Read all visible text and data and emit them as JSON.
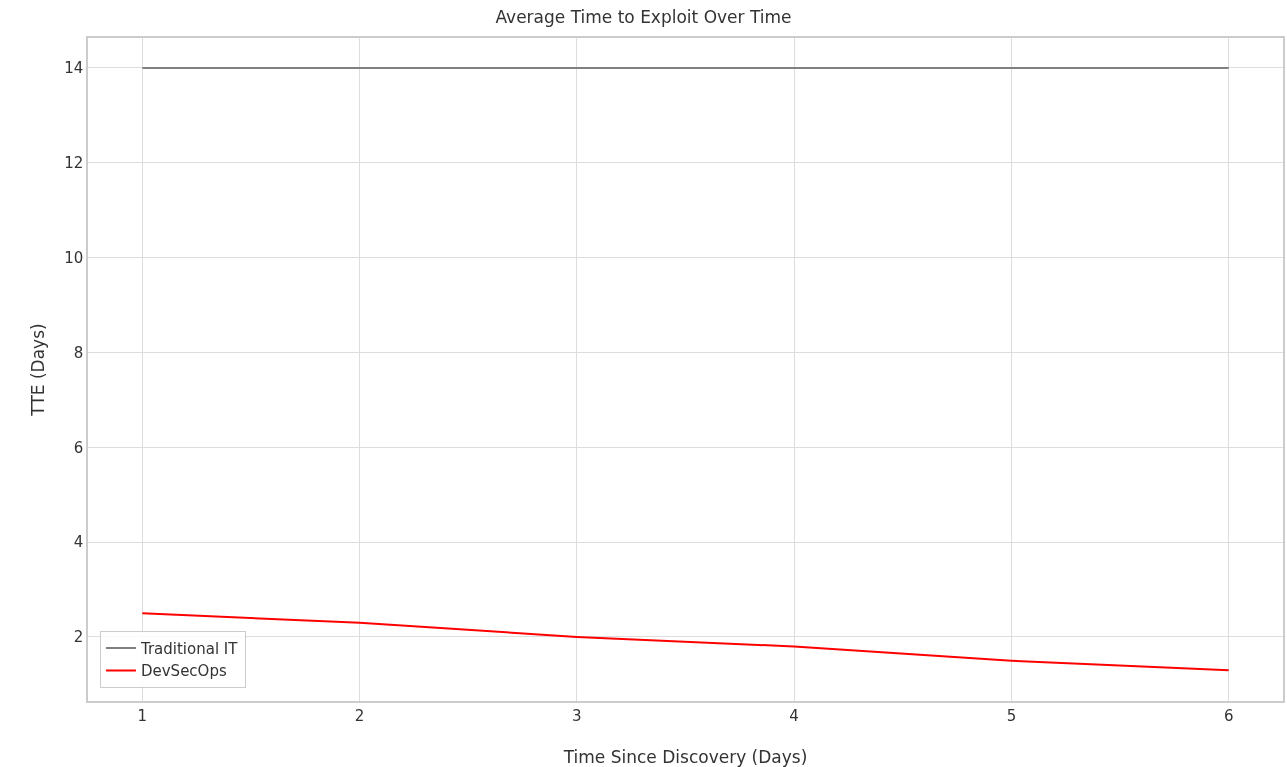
{
  "chart_data": {
    "type": "line",
    "title": "Average Time to Exploit Over Time",
    "xlabel": "Time Since Discovery (Days)",
    "ylabel": "TTE (Days)",
    "x": [
      1,
      2,
      3,
      4,
      5,
      6
    ],
    "series": [
      {
        "name": "Traditional IT",
        "color": "#808080",
        "values": [
          14,
          14,
          14,
          14,
          14,
          14
        ]
      },
      {
        "name": "DevSecOps",
        "color": "#ff0000",
        "values": [
          2.5,
          2.3,
          2.0,
          1.8,
          1.5,
          1.3
        ]
      }
    ],
    "xlim": [
      0.75,
      6.25
    ],
    "xticks": [
      1,
      2,
      3,
      4,
      5,
      6
    ],
    "ylim": [
      0.65,
      14.63
    ],
    "yticks": [
      2,
      4,
      6,
      8,
      10,
      12,
      14
    ],
    "grid": true,
    "legend": "bottom left",
    "marker": "none",
    "line_style": "solid"
  }
}
